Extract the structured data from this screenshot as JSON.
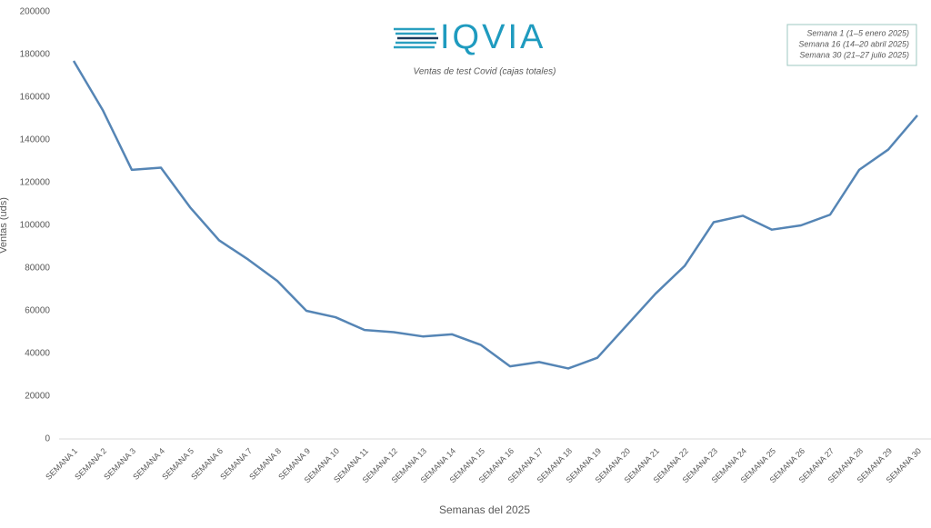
{
  "chart_data": {
    "type": "line",
    "logo": "IQVIA",
    "title": "Ventas de test Covid (cajas totales)",
    "notes": [
      "Semana 1 (1–5 enero 2025)",
      "Semana 16 (14–20 abril 2025)",
      "Semana 30 (21–27 julio 2025)"
    ],
    "x_label": "Semanas del 2025",
    "y_label": "Ventas (uds)",
    "categories": [
      "SEMANA 1",
      "SEMANA 2",
      "SEMANA 3",
      "SEMANA 4",
      "SEMANA 5",
      "SEMANA 6",
      "SEMANA 7",
      "SEMANA 8",
      "SEMANA 9",
      "SEMANA 10",
      "SEMANA 11",
      "SEMANA 12",
      "SEMANA 13",
      "SEMANA 14",
      "SEMANA 15",
      "SEMANA 16",
      "SEMANA 17",
      "SEMANA 18",
      "SEMANA 19",
      "SEMANA 20",
      "SEMANA 21",
      "SEMANA 22",
      "SEMANA 23",
      "SEMANA 24",
      "SEMANA 25",
      "SEMANA 26",
      "SEMANA 27",
      "SEMANA 28",
      "SEMANA 29",
      "SEMANA 30"
    ],
    "values": [
      177000,
      154000,
      126000,
      127000,
      108500,
      93000,
      84000,
      74000,
      60000,
      57000,
      51000,
      50000,
      48000,
      49000,
      44000,
      34000,
      36000,
      33000,
      38000,
      53000,
      68000,
      81000,
      101500,
      104500,
      98000,
      100000,
      105000,
      126000,
      135500,
      151500
    ],
    "color": "#5585b5",
    "ylim": [
      0,
      200000
    ],
    "yticks": [
      0,
      20000,
      40000,
      60000,
      80000,
      100000,
      120000,
      140000,
      160000,
      180000,
      200000
    ],
    "grid": false
  }
}
